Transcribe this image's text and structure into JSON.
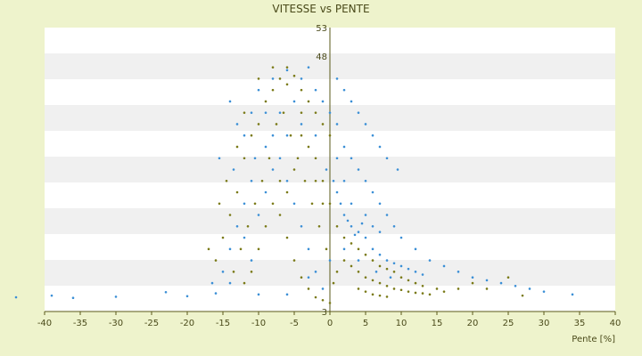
{
  "chart_data": {
    "type": "scatter",
    "title": "VITESSE vs PENTE",
    "xlabel": "Pente [%]",
    "ylabel": "",
    "xlim": [
      -40,
      40
    ],
    "ylim": [
      3,
      53
    ],
    "x_ticks": [
      -40,
      -35,
      -30,
      -25,
      -20,
      -15,
      -10,
      -5,
      0,
      5,
      10,
      15,
      20,
      25,
      30,
      35,
      40
    ],
    "y_ticks": [
      3,
      48,
      53
    ],
    "grid": true,
    "legend": "none",
    "colors": {
      "background": "#eef3cc",
      "plot_band_light": "#ffffff",
      "plot_band_dark": "#f0f0f0",
      "axis": "#5a5a1a",
      "series_blue": "#3b8fd6",
      "series_olive": "#7a7a18"
    },
    "series": [
      {
        "color": "#3b8fd6",
        "points": [
          [
            -44,
            5.5
          ],
          [
            -39,
            5.8
          ],
          [
            -36,
            5.4
          ],
          [
            -30,
            5.6
          ],
          [
            -23,
            6.4
          ],
          [
            -20,
            5.7
          ],
          [
            -16,
            6.2
          ],
          [
            -15,
            10
          ],
          [
            -14,
            14
          ],
          [
            -13,
            18
          ],
          [
            -12,
            22
          ],
          [
            -11,
            26
          ],
          [
            -10.5,
            30
          ],
          [
            -13.5,
            28
          ],
          [
            -12,
            34
          ],
          [
            -11,
            38
          ],
          [
            -13,
            36
          ],
          [
            -14,
            40
          ],
          [
            -10,
            42
          ],
          [
            -9,
            38
          ],
          [
            -8,
            34
          ],
          [
            -7,
            30
          ],
          [
            -6,
            26
          ],
          [
            -5,
            22
          ],
          [
            -4,
            18
          ],
          [
            -3,
            14
          ],
          [
            -2,
            10
          ],
          [
            -1,
            7
          ],
          [
            -8,
            44
          ],
          [
            -6,
            45.5
          ],
          [
            -4,
            44
          ],
          [
            -3,
            46
          ],
          [
            -2,
            42
          ],
          [
            -1,
            40
          ],
          [
            -5,
            40
          ],
          [
            -7,
            38
          ],
          [
            -9,
            32
          ],
          [
            -6,
            34
          ],
          [
            -4,
            36
          ],
          [
            -2,
            34
          ],
          [
            0,
            38
          ],
          [
            1,
            36
          ],
          [
            2,
            32
          ],
          [
            3,
            30
          ],
          [
            4,
            28
          ],
          [
            5,
            26
          ],
          [
            6,
            24
          ],
          [
            7,
            22
          ],
          [
            8,
            20
          ],
          [
            9,
            18
          ],
          [
            10,
            16
          ],
          [
            12,
            14
          ],
          [
            14,
            12
          ],
          [
            16,
            11
          ],
          [
            18,
            10
          ],
          [
            20,
            9
          ],
          [
            22,
            8.5
          ],
          [
            24,
            8
          ],
          [
            26,
            7.5
          ],
          [
            28,
            7
          ],
          [
            30,
            6.5
          ],
          [
            34,
            6
          ],
          [
            2,
            20
          ],
          [
            3,
            18
          ],
          [
            4,
            17
          ],
          [
            5,
            16
          ],
          [
            3.5,
            16.5
          ],
          [
            2.5,
            19
          ],
          [
            4.5,
            18.5
          ],
          [
            1,
            24
          ],
          [
            1.5,
            22
          ],
          [
            0.5,
            26
          ],
          [
            -0.5,
            28
          ],
          [
            6,
            14
          ],
          [
            7,
            13
          ],
          [
            8,
            12
          ],
          [
            9,
            11.5
          ],
          [
            10,
            11
          ],
          [
            11,
            10.5
          ],
          [
            12,
            10
          ],
          [
            13,
            9.5
          ],
          [
            6.5,
            10
          ],
          [
            8.5,
            9
          ],
          [
            1,
            44
          ],
          [
            2,
            42
          ],
          [
            3,
            40
          ],
          [
            4,
            38
          ],
          [
            5,
            36
          ],
          [
            6,
            34
          ],
          [
            7,
            32
          ],
          [
            8,
            30
          ],
          [
            9.5,
            28
          ],
          [
            -11,
            12
          ],
          [
            -12,
            16
          ],
          [
            -10,
            20
          ],
          [
            -9,
            24
          ],
          [
            -8,
            28
          ],
          [
            -15.5,
            30
          ],
          [
            -16.5,
            8
          ],
          [
            -14,
            8
          ],
          [
            -10,
            6
          ],
          [
            -6,
            6
          ],
          [
            -3,
            9
          ],
          [
            0,
            12
          ],
          [
            2,
            14
          ],
          [
            4,
            12
          ],
          [
            5,
            20
          ],
          [
            6,
            18
          ],
          [
            7,
            17
          ],
          [
            3,
            22
          ],
          [
            2,
            26
          ],
          [
            1,
            30
          ]
        ]
      },
      {
        "color": "#7a7a18",
        "points": [
          [
            -16,
            12
          ],
          [
            -15,
            16
          ],
          [
            -14,
            20
          ],
          [
            -13,
            24
          ],
          [
            -12,
            30
          ],
          [
            -11,
            34
          ],
          [
            -10,
            36
          ],
          [
            -9,
            40
          ],
          [
            -8,
            42
          ],
          [
            -7,
            44
          ],
          [
            -6,
            46
          ],
          [
            -5,
            44.5
          ],
          [
            -4,
            42
          ],
          [
            -3,
            40
          ],
          [
            -2,
            38
          ],
          [
            -1,
            36
          ],
          [
            0,
            34
          ],
          [
            -6.5,
            38
          ],
          [
            -5.5,
            34
          ],
          [
            -4.5,
            30
          ],
          [
            -3.5,
            26
          ],
          [
            -2.5,
            22
          ],
          [
            -1.5,
            18
          ],
          [
            -0.5,
            14
          ],
          [
            -7.5,
            36
          ],
          [
            -8.5,
            30
          ],
          [
            -9.5,
            26
          ],
          [
            -10.5,
            22
          ],
          [
            -11.5,
            18
          ],
          [
            -12.5,
            14
          ],
          [
            -13.5,
            10
          ],
          [
            -7,
            20
          ],
          [
            -6,
            16
          ],
          [
            -5,
            12
          ],
          [
            -4,
            9
          ],
          [
            -3,
            7
          ],
          [
            -2,
            5.5
          ],
          [
            -1,
            5
          ],
          [
            0,
            4.5
          ],
          [
            0.5,
            8
          ],
          [
            1,
            10
          ],
          [
            2,
            12
          ],
          [
            3,
            11
          ],
          [
            4,
            10
          ],
          [
            5,
            9
          ],
          [
            6,
            8.5
          ],
          [
            7,
            8
          ],
          [
            8,
            7.5
          ],
          [
            9,
            7
          ],
          [
            10,
            6.8
          ],
          [
            11,
            6.5
          ],
          [
            12,
            6.3
          ],
          [
            13,
            6.2
          ],
          [
            14,
            6
          ],
          [
            15,
            7
          ],
          [
            16,
            6.5
          ],
          [
            18,
            7
          ],
          [
            20,
            8
          ],
          [
            22,
            7
          ],
          [
            25,
            9
          ],
          [
            27,
            5.8
          ],
          [
            -17,
            14
          ],
          [
            -15.5,
            22
          ],
          [
            -14.5,
            26
          ],
          [
            -13,
            32
          ],
          [
            -12,
            38
          ],
          [
            -10,
            44
          ],
          [
            -8,
            46
          ],
          [
            -6,
            43
          ],
          [
            -4,
            38
          ],
          [
            -2,
            30
          ],
          [
            -1,
            26
          ],
          [
            0,
            22
          ],
          [
            1,
            18
          ],
          [
            2,
            16
          ],
          [
            3,
            15
          ],
          [
            4,
            14
          ],
          [
            5,
            13
          ],
          [
            6,
            12
          ],
          [
            7,
            11
          ],
          [
            8,
            10.5
          ],
          [
            9,
            10
          ],
          [
            10,
            9
          ],
          [
            11,
            8.5
          ],
          [
            12,
            8
          ],
          [
            13,
            7.5
          ],
          [
            4,
            7
          ],
          [
            5,
            6.5
          ],
          [
            6,
            6
          ],
          [
            7,
            5.8
          ],
          [
            8,
            5.6
          ],
          [
            -5,
            28
          ],
          [
            -6,
            24
          ],
          [
            -7,
            26
          ],
          [
            -8,
            22
          ],
          [
            -9,
            18
          ],
          [
            -10,
            14
          ],
          [
            -11,
            10
          ],
          [
            -12,
            8
          ],
          [
            -3,
            32
          ],
          [
            -4,
            34
          ],
          [
            -2,
            26
          ],
          [
            -1,
            22
          ]
        ]
      }
    ]
  }
}
